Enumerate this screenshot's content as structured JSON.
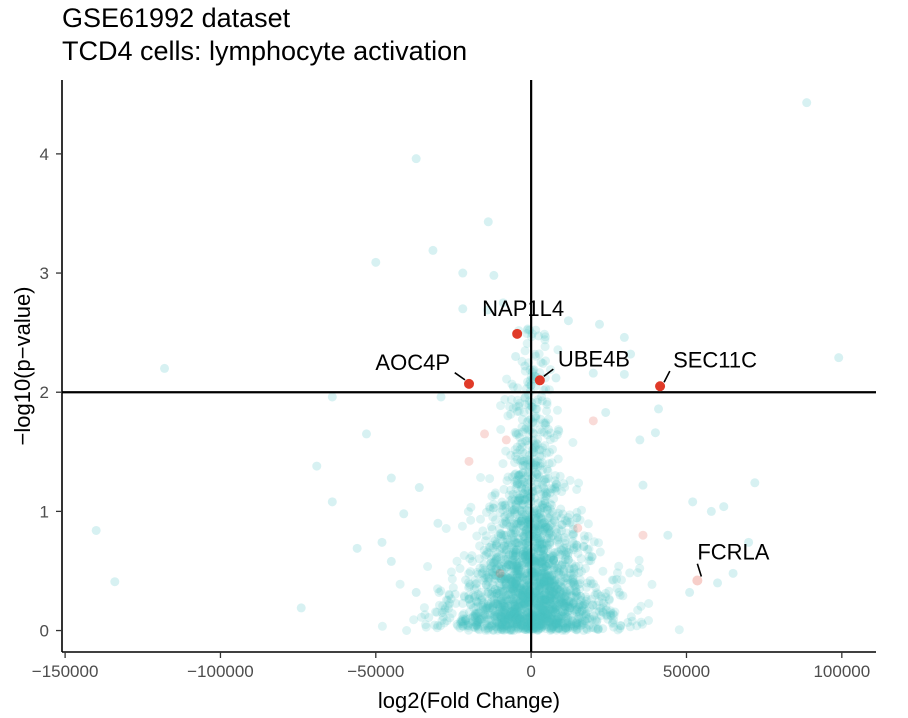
{
  "chart_data": {
    "type": "scatter",
    "title": "GSE61992 dataset",
    "subtitle": "TCD4 cells: lymphocyte activation",
    "xlabel": "log2(Fold Change)",
    "ylabel": "−log10(p−value)",
    "xlim": [
      -151000,
      111000
    ],
    "ylim": [
      -0.18,
      4.62
    ],
    "xticks": [
      -150000,
      -100000,
      -50000,
      0,
      50000,
      100000
    ],
    "xtick_labels": [
      "−150000",
      "−100000",
      "−50000",
      "0",
      "50000",
      "100000"
    ],
    "yticks": [
      0,
      1,
      2,
      3,
      4
    ],
    "ytick_labels": [
      "0",
      "1",
      "2",
      "3",
      "4"
    ],
    "grid": false,
    "threshold_lines": {
      "x": 0,
      "y": 2
    },
    "colors": {
      "background_points": "#48c0c4",
      "highlight": "#e03a28"
    },
    "series": [
      {
        "points": [
          {
            "x": 88700,
            "y": 4.43
          },
          {
            "x": -37000,
            "y": 3.96
          },
          {
            "x": -13800,
            "y": 3.43
          },
          {
            "x": -31600,
            "y": 3.19
          },
          {
            "x": -50000,
            "y": 3.09
          },
          {
            "x": -22000,
            "y": 3.0
          },
          {
            "x": -12000,
            "y": 2.98
          },
          {
            "x": -14000,
            "y": 2.69
          },
          {
            "x": -22000,
            "y": 2.7
          },
          {
            "x": -9000,
            "y": 2.75
          },
          {
            "x": 12000,
            "y": 2.6
          },
          {
            "x": 22000,
            "y": 2.57
          },
          {
            "x": 30000,
            "y": 2.46
          },
          {
            "x": -118000,
            "y": 2.2
          },
          {
            "x": 99000,
            "y": 2.29
          },
          {
            "x": 32000,
            "y": 2.32
          },
          {
            "x": 20000,
            "y": 2.16
          },
          {
            "x": 30000,
            "y": 2.15
          },
          {
            "x": 8000,
            "y": 2.12
          },
          {
            "x": -2000,
            "y": 2.22
          },
          {
            "x": -5000,
            "y": 2.3
          },
          {
            "x": -64000,
            "y": 1.96
          },
          {
            "x": -29000,
            "y": 1.96
          },
          {
            "x": -53000,
            "y": 1.65
          },
          {
            "x": -69000,
            "y": 1.38
          },
          {
            "x": -45000,
            "y": 1.28
          },
          {
            "x": -64000,
            "y": 1.08
          },
          {
            "x": -140000,
            "y": 0.84
          },
          {
            "x": -134000,
            "y": 0.41
          },
          {
            "x": -74000,
            "y": 0.19
          },
          {
            "x": -56000,
            "y": 0.69
          },
          {
            "x": -48000,
            "y": 0.74
          },
          {
            "x": -30000,
            "y": 0.9
          },
          {
            "x": 72000,
            "y": 1.24
          },
          {
            "x": 62000,
            "y": 1.04
          },
          {
            "x": 58000,
            "y": 1.0
          },
          {
            "x": 52000,
            "y": 1.08
          },
          {
            "x": 70000,
            "y": 0.74
          },
          {
            "x": 65000,
            "y": 0.48
          },
          {
            "x": 60000,
            "y": 0.4
          },
          {
            "x": 51000,
            "y": 0.32
          },
          {
            "x": 40000,
            "y": 1.66
          },
          {
            "x": 35000,
            "y": 1.6
          },
          {
            "x": 41000,
            "y": 1.86
          },
          {
            "x": 24000,
            "y": 1.83
          },
          {
            "x": -36000,
            "y": 1.2
          },
          {
            "x": -41000,
            "y": 0.98
          },
          {
            "x": -45000,
            "y": 0.58
          },
          {
            "x": -37000,
            "y": 0.32
          },
          {
            "x": 44000,
            "y": 0.8
          },
          {
            "x": 36000,
            "y": 1.22
          }
        ]
      },
      {
        "name": "highlight",
        "points": [
          {
            "x": -4500,
            "y": 2.49,
            "label": "NAP1L4"
          },
          {
            "x": -20000,
            "y": 2.07,
            "label": "AOC4P"
          },
          {
            "x": 2800,
            "y": 2.1,
            "label": "UBE4B"
          },
          {
            "x": 41500,
            "y": 2.05,
            "label": "SEC11C"
          },
          {
            "x": 53500,
            "y": 0.42,
            "label": "FCRLA"
          }
        ]
      }
    ]
  }
}
